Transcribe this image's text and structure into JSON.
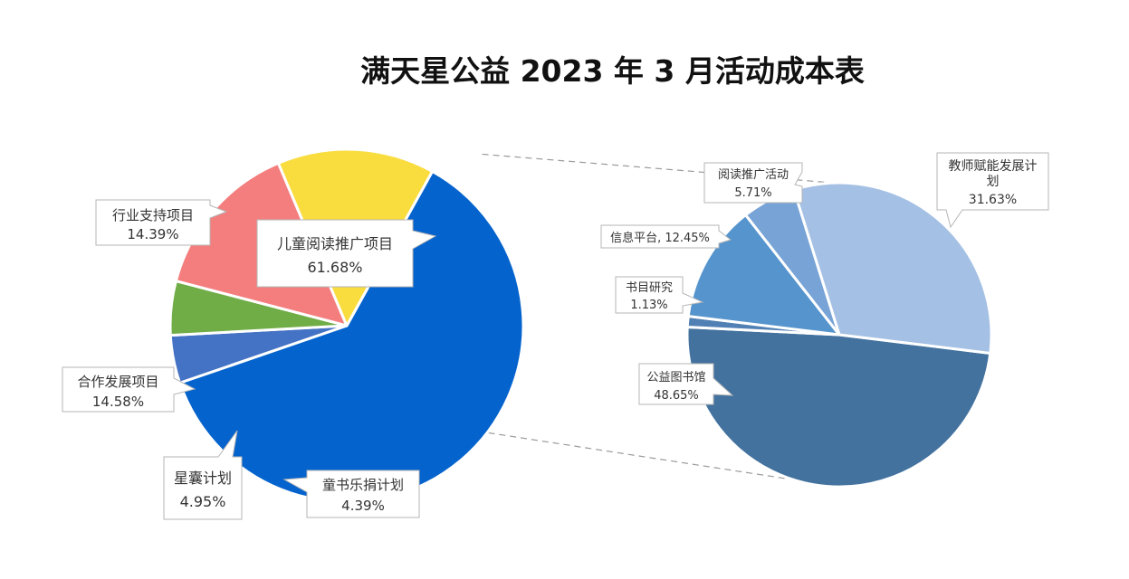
{
  "chart_data": {
    "title": "满天星公益 2023 年 3 月活动成本表",
    "type": "pie",
    "main_pie": {
      "slices": [
        {
          "name": "儿童阅读推广项目",
          "value": 61.68,
          "label": "61.68%",
          "color": "#0563CD"
        },
        {
          "name": "童书乐捐计划",
          "value": 4.39,
          "label": "4.39%",
          "color": "#4472C4"
        },
        {
          "name": "星囊计划",
          "value": 4.95,
          "label": "4.95%",
          "color": "#70AD47"
        },
        {
          "name": "合作发展项目",
          "value": 14.58,
          "label": "14.58%",
          "color": "#F47E7E"
        },
        {
          "name": "行业支持项目",
          "value": 14.39,
          "label": "14.39%",
          "color": "#F9DC3E"
        }
      ]
    },
    "sub_pie": {
      "slices": [
        {
          "name": "公益图书馆",
          "value": 48.65,
          "label": "48.65%",
          "color": "#43729F"
        },
        {
          "name": "书目研究",
          "value": 1.13,
          "label": "1.13%",
          "color": "#5180B5"
        },
        {
          "name": "信息平台",
          "value": 12.45,
          "label": "12.45%",
          "color": "#5594CD"
        },
        {
          "name": "阅读推广活动",
          "value": 5.71,
          "label": "5.71%",
          "color": "#77A3D6"
        },
        {
          "name": "教师赋能发展计划",
          "value": 31.63,
          "label": "31.63%",
          "color": "#A4C0E4"
        }
      ]
    }
  }
}
